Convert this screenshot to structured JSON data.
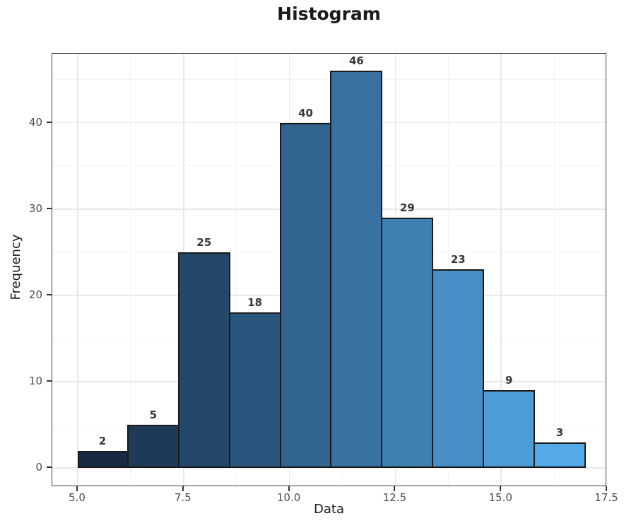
{
  "title": "Histogram",
  "chart_data": {
    "type": "bar",
    "subtype": "histogram",
    "title": "Histogram",
    "xlabel": "Data",
    "ylabel": "Frequency",
    "bin_edges": [
      5.0,
      6.2,
      7.4,
      8.6,
      9.8,
      11.0,
      12.2,
      13.4,
      14.6,
      15.8,
      17.0
    ],
    "values": [
      2,
      5,
      25,
      18,
      40,
      46,
      29,
      23,
      9,
      3
    ],
    "bar_labels": [
      "2",
      "5",
      "25",
      "18",
      "40",
      "46",
      "29",
      "23",
      "9",
      "3"
    ],
    "bar_colors": [
      "#162940",
      "#1d3b57",
      "#23486a",
      "#2a567d",
      "#31648f",
      "#3872a1",
      "#3f80b3",
      "#468ec5",
      "#4d9cd7",
      "#54aae9"
    ],
    "bar_border_color": "#1a1a1a",
    "x_ticks": {
      "values": [
        5.0,
        7.5,
        10.0,
        12.5,
        15.0,
        17.5
      ],
      "labels": [
        "5.0",
        "7.5",
        "10.0",
        "12.5",
        "15.0",
        "17.5"
      ]
    },
    "y_ticks": {
      "values": [
        0,
        10,
        20,
        30,
        40
      ],
      "labels": [
        "0",
        "10",
        "20",
        "30",
        "40"
      ]
    },
    "x_minor_ticks": [
      6.25,
      8.75,
      11.25,
      13.75,
      16.25
    ],
    "y_minor_ticks": [
      5,
      15,
      25,
      35,
      45
    ],
    "xlim": [
      4.4,
      17.5
    ],
    "ylim": [
      -2.2,
      48
    ],
    "grid": "on",
    "legend": "none",
    "panel_background": "#ffffff",
    "panel_border_color": "#3c3c3c",
    "grid_major_color": "#e8e8e8",
    "grid_minor_color": "#f4f4f4",
    "tick_label_color": "#4d4d4d",
    "value_label_color": "#383838"
  }
}
